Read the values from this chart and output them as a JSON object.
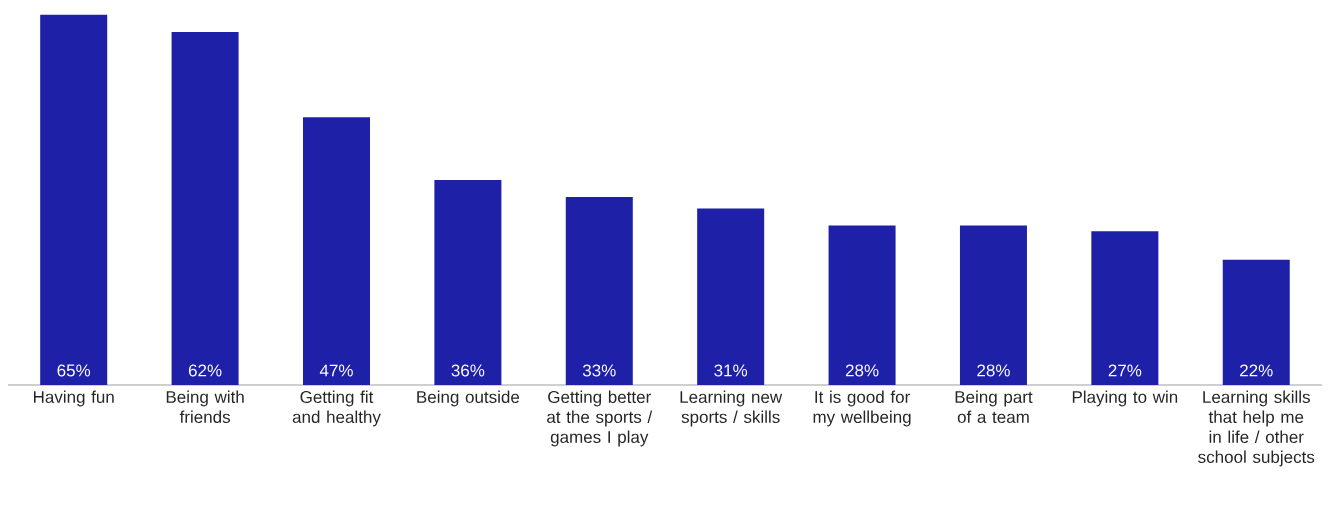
{
  "chart_data": {
    "type": "bar",
    "color": "#1f20a8",
    "categories": [
      "Having fun",
      "Being with friends",
      "Getting fit and healthy",
      "Being outside",
      "Getting better at the sports / games I play",
      "Learning new sports / skills",
      "It is good for my wellbeing",
      "Being part of a team",
      "Playing to win",
      "Learning skills that help me in life / other school subjects"
    ],
    "values": [
      65,
      62,
      47,
      36,
      33,
      31,
      28,
      28,
      27,
      22
    ],
    "value_labels": [
      "65%",
      "62%",
      "47%",
      "36%",
      "33%",
      "31%",
      "28%",
      "28%",
      "27%",
      "22%"
    ]
  }
}
